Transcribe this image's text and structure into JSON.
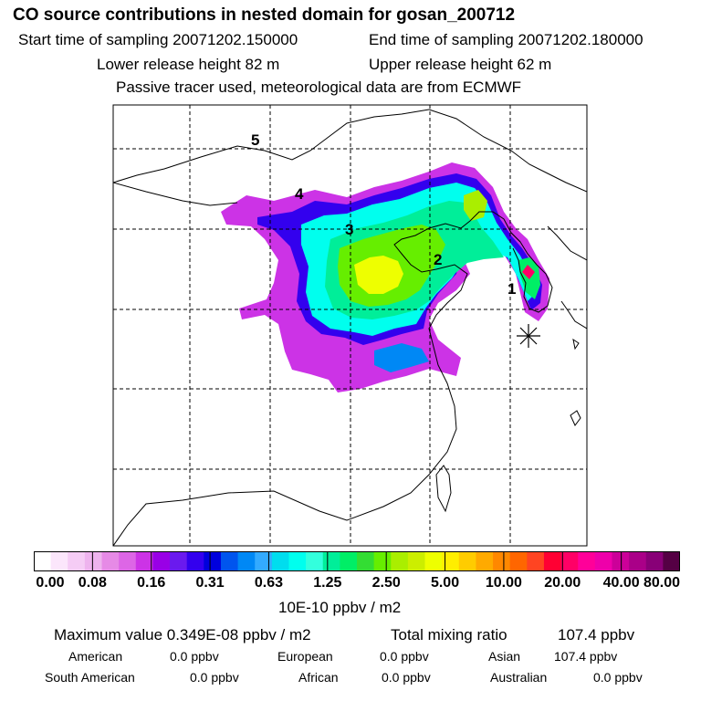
{
  "header": {
    "title": "CO  source contributions in nested domain for gosan_200712",
    "start": "Start time of sampling 20071202.150000",
    "end": "End time of sampling 20071202.180000",
    "lower": "Lower release height   82 m",
    "upper": "Upper release height   62 m",
    "info": "Passive tracer used, meteorological data are from ECMWF"
  },
  "map": {
    "region_labels": [
      "1",
      "2",
      "3",
      "4",
      "5"
    ]
  },
  "colorbar": {
    "ticks": [
      "0.00",
      "0.08",
      "0.16",
      "0.31",
      "0.63",
      "1.25",
      "2.50",
      "5.00",
      "10.00",
      "20.00",
      "40.00",
      "80.00"
    ],
    "colors": [
      "#ffffff",
      "#fbe6fb",
      "#f5ccf5",
      "#eeb3ee",
      "#e68ae6",
      "#dd66e6",
      "#cc33e6",
      "#9900e6",
      "#6a1aee",
      "#3300ee",
      "#0000dd",
      "#0055ee",
      "#0088f5",
      "#33aaff",
      "#00ddee",
      "#00ffee",
      "#33ffdd",
      "#00ee99",
      "#00ee66",
      "#33dd33",
      "#66ee00",
      "#aaee00",
      "#ccee00",
      "#eeff00",
      "#ffee00",
      "#ffcc00",
      "#ffaa00",
      "#ff8800",
      "#ff6600",
      "#ff4422",
      "#ff0033",
      "#ff0066",
      "#ff0099",
      "#ee00aa",
      "#cc0099",
      "#aa0088",
      "#880077",
      "#550044"
    ],
    "units": "10E-10 ppbv / m2"
  },
  "summary": {
    "max_value": "Maximum value  0.349E-08 ppbv / m2",
    "total_label": "Total mixing ratio",
    "total_value": "107.4 ppbv",
    "sources": [
      {
        "name": "American",
        "value": "0.0 ppbv"
      },
      {
        "name": "European",
        "value": "0.0 ppbv"
      },
      {
        "name": "Asian",
        "value": "107.4 ppbv"
      },
      {
        "name": "South American",
        "value": "0.0 ppbv"
      },
      {
        "name": "African",
        "value": "0.0 ppbv"
      },
      {
        "name": "Australian",
        "value": "0.0 ppbv"
      }
    ]
  }
}
